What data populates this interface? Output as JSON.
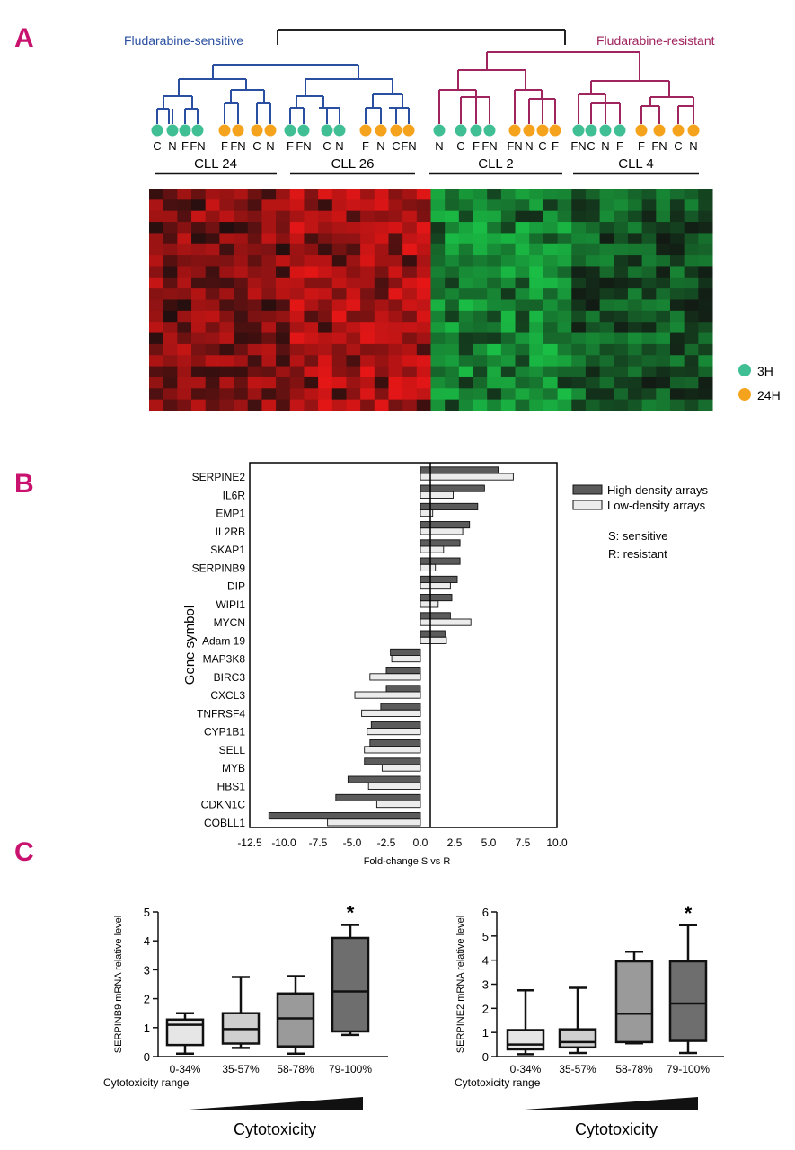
{
  "panels": {
    "a": "A",
    "b": "B",
    "c": "C"
  },
  "colors": {
    "panel_letter": "#c8126e",
    "sensitive": "#2a4fa0",
    "resistant": "#a0245e",
    "dot_3h": "#3fbf93",
    "dot_24h": "#f5a31d",
    "bar_high": "#5b5b5b",
    "bar_low": "#ececec"
  },
  "chart_data": [
    {
      "type": "heatmap",
      "groups": [
        {
          "label": "Fludarabine-sensitive"
        },
        {
          "label": "Fludarabine-resistant"
        }
      ],
      "patients": [
        "CLL 24",
        "CLL 26",
        "CLL 2",
        "CLL 4"
      ],
      "samples": [
        {
          "label": "C",
          "time": "3H"
        },
        {
          "label": "N",
          "time": "3H"
        },
        {
          "label": "F",
          "time": "3H"
        },
        {
          "label": "FN",
          "time": "3H"
        },
        {
          "label": "F",
          "time": "24H"
        },
        {
          "label": "FN",
          "time": "24H"
        },
        {
          "label": "C",
          "time": "24H"
        },
        {
          "label": "N",
          "time": "24H"
        },
        {
          "label": "F",
          "time": "3H"
        },
        {
          "label": "FN",
          "time": "3H"
        },
        {
          "label": "C",
          "time": "3H"
        },
        {
          "label": "N",
          "time": "3H"
        },
        {
          "label": "F",
          "time": "24H"
        },
        {
          "label": "N",
          "time": "24H"
        },
        {
          "label": "C",
          "time": "24H"
        },
        {
          "label": "FN",
          "time": "24H"
        },
        {
          "label": "N",
          "time": "3H"
        },
        {
          "label": "C",
          "time": "3H"
        },
        {
          "label": "F",
          "time": "3H"
        },
        {
          "label": "FN",
          "time": "3H"
        },
        {
          "label": "FN",
          "time": "24H"
        },
        {
          "label": "N",
          "time": "24H"
        },
        {
          "label": "C",
          "time": "24H"
        },
        {
          "label": "F",
          "time": "24H"
        },
        {
          "label": "FN",
          "time": "3H"
        },
        {
          "label": "C",
          "time": "3H"
        },
        {
          "label": "N",
          "time": "3H"
        },
        {
          "label": "F",
          "time": "3H"
        },
        {
          "label": "F",
          "time": "24H"
        },
        {
          "label": "FN",
          "time": "24H"
        },
        {
          "label": "C",
          "time": "24H"
        },
        {
          "label": "N",
          "time": "24H"
        }
      ],
      "legend": [
        {
          "label": "3H",
          "color": "#3fbf93"
        },
        {
          "label": "24H",
          "color": "#f5a31d"
        }
      ],
      "heat_colors": {
        "up": "#e01818",
        "mid": "#141414",
        "down": "#18c040"
      }
    },
    {
      "type": "bar",
      "orientation": "horizontal",
      "ylabel": "Gene symbol",
      "xlabel": "Fold-change S vs R",
      "xlim": [
        -12.5,
        10.0
      ],
      "xticks": [
        "-12.5",
        "-10.0",
        "-7.5",
        "-5.0",
        "-2.5",
        "0.0",
        "2.5",
        "5.0",
        "7.5",
        "10.0"
      ],
      "categories": [
        "SERPINE2",
        "IL6R",
        "EMP1",
        "IL2RB",
        "SKAP1",
        "SERPINB9",
        "DIP",
        "WIPI1",
        "MYCN",
        "Adam 19",
        "MAP3K8",
        "BIRC3",
        "CXCL3",
        "TNFRSF4",
        "CYP1B1",
        "SELL",
        "MYB",
        "HBS1",
        "CDKN1C",
        "COBLL1"
      ],
      "series": [
        {
          "name": "High-density arrays",
          "color": "#5b5b5b",
          "values": [
            5.7,
            4.7,
            4.2,
            3.6,
            2.9,
            2.9,
            2.7,
            2.3,
            2.2,
            1.8,
            -2.2,
            -2.5,
            -2.5,
            -2.9,
            -3.6,
            -3.7,
            -4.1,
            -5.3,
            -6.2,
            -11.1
          ]
        },
        {
          "name": "Low-density arrays",
          "color": "#ececec",
          "values": [
            6.8,
            2.4,
            0.9,
            3.1,
            1.7,
            1.1,
            2.2,
            1.3,
            3.7,
            1.9,
            -2.1,
            -3.7,
            -4.8,
            -4.3,
            -3.9,
            -4.1,
            -2.8,
            -3.8,
            -3.2,
            -6.8
          ]
        }
      ],
      "notes": [
        "S: sensitive",
        "R: resistant"
      ]
    },
    {
      "type": "box",
      "ylabel": "SERPINB9 mRNA relative level",
      "ylim": [
        0,
        5
      ],
      "yticks": [
        "0",
        "1",
        "2",
        "3",
        "4",
        "5"
      ],
      "categories": [
        "0-34%",
        "35-57%",
        "58-78%",
        "79-100%"
      ],
      "axis_caption": "Cytotoxicity range",
      "footer": "Cytotoxicity",
      "boxes": [
        {
          "min": 0.1,
          "q1": 0.4,
          "median": 1.1,
          "q3": 1.28,
          "max": 1.5,
          "fill": "#e6e6e6"
        },
        {
          "min": 0.3,
          "q1": 0.45,
          "median": 0.95,
          "q3": 1.5,
          "max": 2.75,
          "fill": "#cfcfcf"
        },
        {
          "min": 0.1,
          "q1": 0.35,
          "median": 1.32,
          "q3": 2.18,
          "max": 2.78,
          "fill": "#9a9a9a"
        },
        {
          "min": 0.75,
          "q1": 0.87,
          "median": 2.25,
          "q3": 4.1,
          "max": 4.55,
          "fill": "#6e6e6e"
        }
      ],
      "significance": [
        "",
        "",
        "",
        "*"
      ]
    },
    {
      "type": "box",
      "ylabel": "SERPINE2 mRNA relative level",
      "ylim": [
        0,
        6
      ],
      "yticks": [
        "0",
        "1",
        "2",
        "3",
        "4",
        "5",
        "6"
      ],
      "categories": [
        "0-34%",
        "35-57%",
        "58-78%",
        "79-100%"
      ],
      "axis_caption": "Cytotoxicity range",
      "footer": "Cytotoxicity",
      "boxes": [
        {
          "min": 0.1,
          "q1": 0.3,
          "median": 0.5,
          "q3": 1.1,
          "max": 2.75,
          "fill": "#e6e6e6"
        },
        {
          "min": 0.15,
          "q1": 0.38,
          "median": 0.6,
          "q3": 1.13,
          "max": 2.85,
          "fill": "#cfcfcf"
        },
        {
          "min": 0.55,
          "q1": 0.6,
          "median": 1.78,
          "q3": 3.95,
          "max": 4.35,
          "fill": "#9a9a9a"
        },
        {
          "min": 0.15,
          "q1": 0.65,
          "median": 2.2,
          "q3": 3.95,
          "max": 5.45,
          "fill": "#6e6e6e"
        }
      ],
      "significance": [
        "",
        "",
        "",
        "*"
      ]
    }
  ]
}
